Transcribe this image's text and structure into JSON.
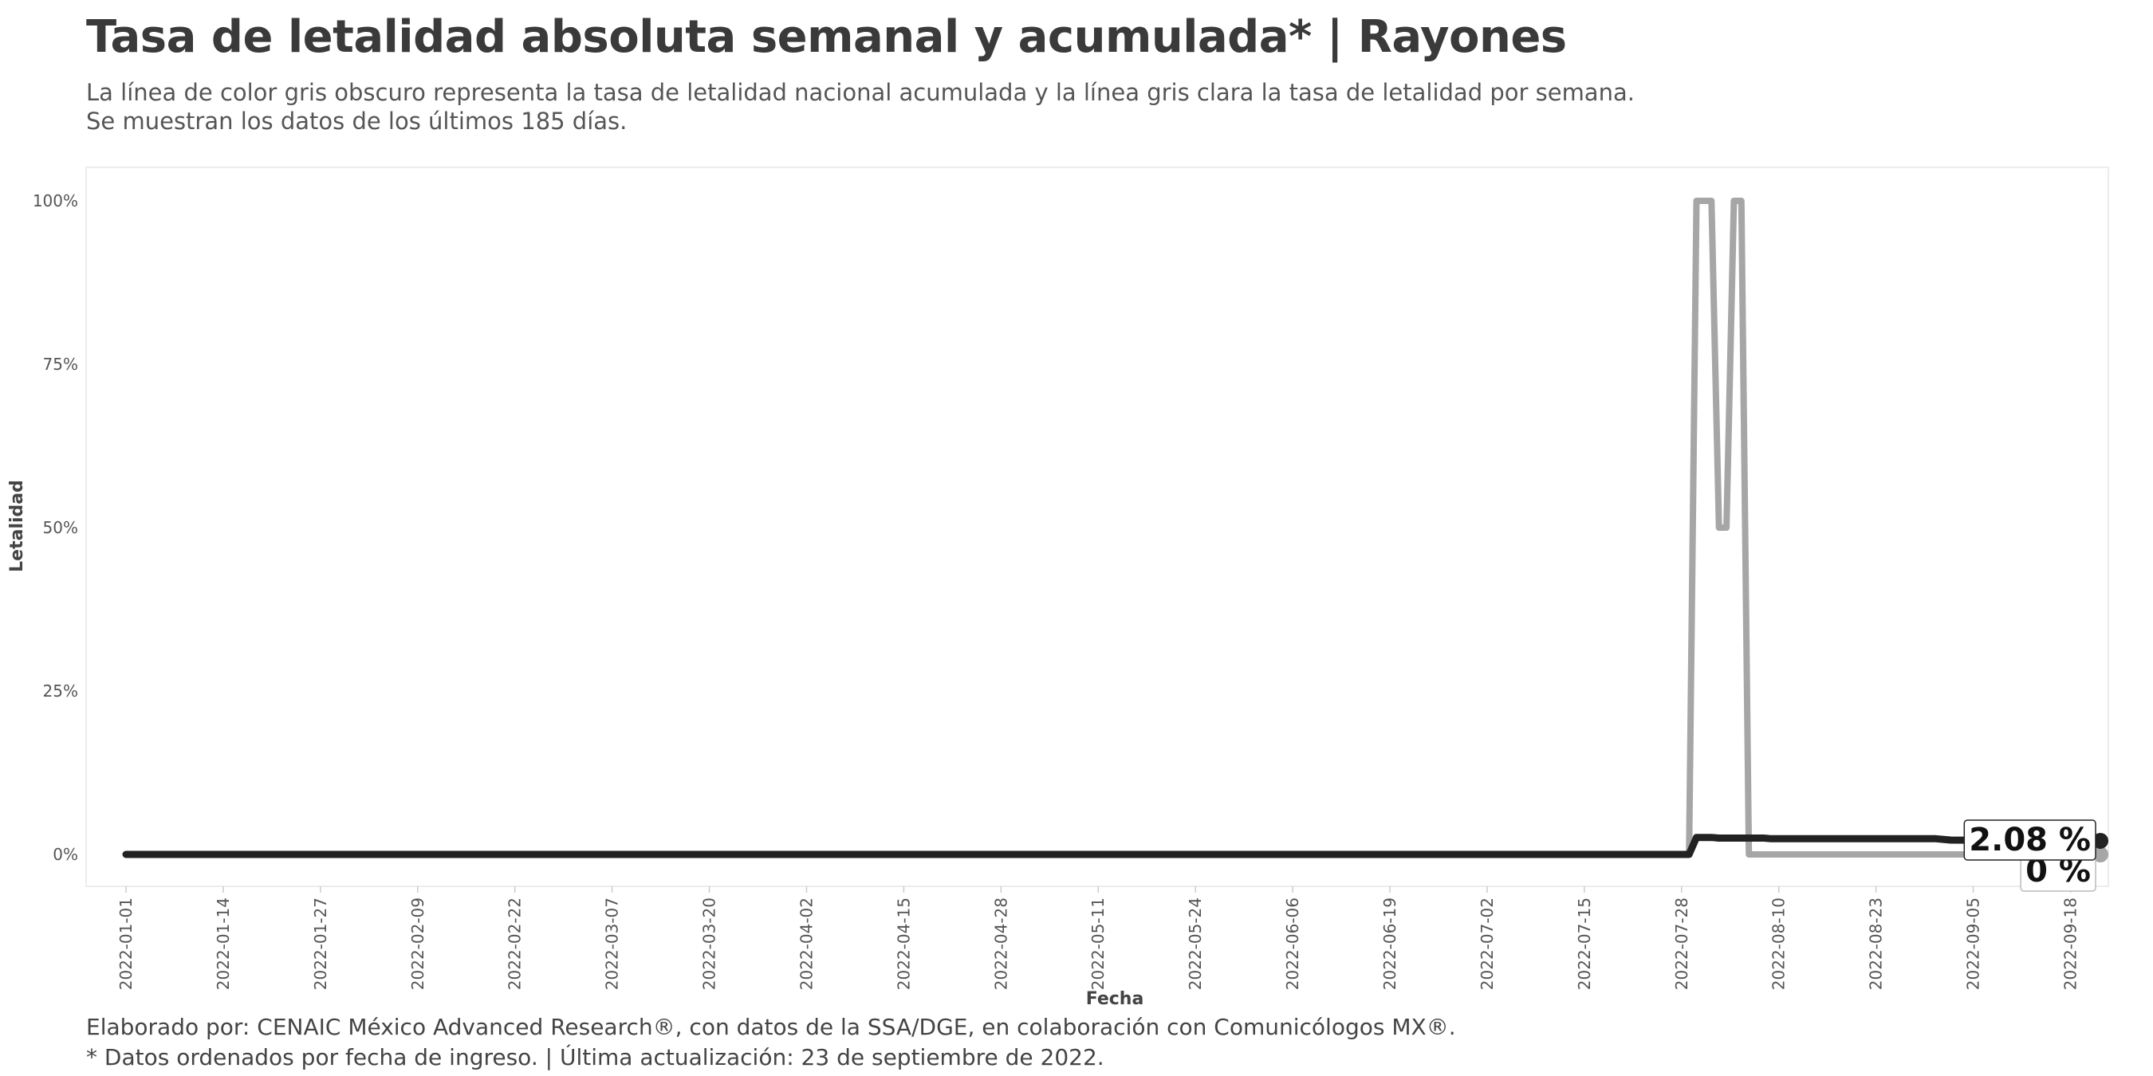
{
  "header": {
    "title": "Tasa de letalidad absoluta semanal y acumulada* | Rayones",
    "subtitle_line1": "La línea de color gris obscuro representa la tasa de letalidad nacional acumulada y la línea gris clara la tasa de letalidad por semana.",
    "subtitle_line2": "Se muestran los datos de los últimos 185 días."
  },
  "caption": {
    "line1": "Elaborado por: CENAIC México Advanced Research®, con datos de la SSA/DGE, en colaboración con Comunicólogos MX®.",
    "line2": "* Datos ordenados por fecha de ingreso. | Última actualización: 23 de septiembre de 2022."
  },
  "colors": {
    "accumulated": "#222222",
    "weekly": "#a6a6a6",
    "panel_border": "#e6e6e6"
  },
  "chart_data": {
    "type": "line",
    "xlabel": "Fecha",
    "ylabel": "Letalidad",
    "xlim": [
      "2022-01-01",
      "2022-09-22"
    ],
    "ylim": [
      0,
      100
    ],
    "y_ticks": [
      0,
      25,
      50,
      75,
      100
    ],
    "y_tick_labels": [
      "0%",
      "25%",
      "50%",
      "75%",
      "100%"
    ],
    "x_tick_labels": [
      "2022-01-01",
      "2022-01-14",
      "2022-01-27",
      "2022-02-09",
      "2022-02-22",
      "2022-03-07",
      "2022-03-20",
      "2022-04-02",
      "2022-04-15",
      "2022-04-28",
      "2022-05-11",
      "2022-05-24",
      "2022-06-06",
      "2022-06-19",
      "2022-07-02",
      "2022-07-15",
      "2022-07-28",
      "2022-08-10",
      "2022-08-23",
      "2022-09-05",
      "2022-09-18"
    ],
    "grid": false,
    "series": [
      {
        "key": "weekly",
        "points": [
          [
            "2022-01-01",
            0
          ],
          [
            "2022-07-29",
            0
          ],
          [
            "2022-07-30",
            100
          ],
          [
            "2022-08-01",
            100
          ],
          [
            "2022-08-02",
            50
          ],
          [
            "2022-08-03",
            50
          ],
          [
            "2022-08-04",
            100
          ],
          [
            "2022-08-05",
            100
          ],
          [
            "2022-08-06",
            0
          ],
          [
            "2022-09-22",
            0
          ]
        ],
        "end_label": "0 %"
      },
      {
        "key": "accumulated",
        "points": [
          [
            "2022-01-01",
            0
          ],
          [
            "2022-07-29",
            0
          ],
          [
            "2022-07-30",
            2.6
          ],
          [
            "2022-08-01",
            2.6
          ],
          [
            "2022-08-02",
            2.5
          ],
          [
            "2022-08-08",
            2.5
          ],
          [
            "2022-08-09",
            2.4
          ],
          [
            "2022-08-31",
            2.4
          ],
          [
            "2022-09-02",
            2.2
          ],
          [
            "2022-09-22",
            2.08
          ]
        ],
        "end_label": "2.08 %"
      }
    ]
  }
}
